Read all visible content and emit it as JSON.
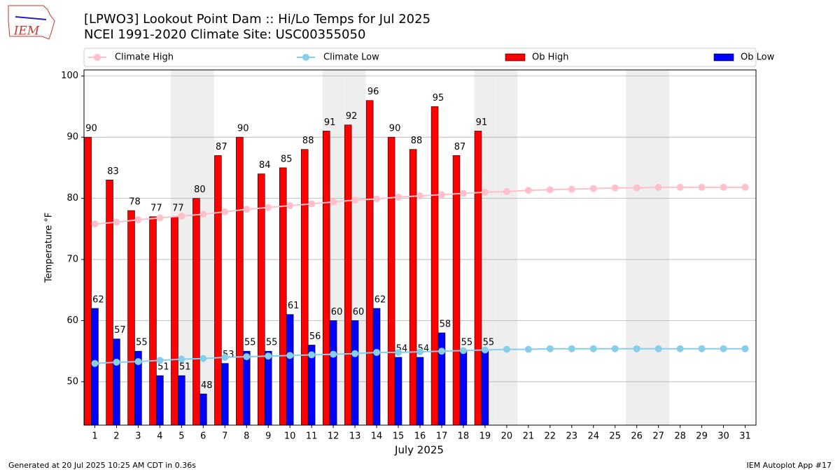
{
  "logo_text": "IEM",
  "footer_left": "Generated at 20 Jul 2025 10:25 AM CDT in 0.36s",
  "footer_right": "IEM Autoplot App #17",
  "chart_data": {
    "type": "bar",
    "title": "[LPWO3] Lookout Point Dam :: Hi/Lo Temps for Jul 2025",
    "subtitle": "NCEI 1991-2020 Climate Site: USC00355050",
    "x_label": "July 2025",
    "y_label": "Temperature °F",
    "x": [
      1,
      2,
      3,
      4,
      5,
      6,
      7,
      8,
      9,
      10,
      11,
      12,
      13,
      14,
      15,
      16,
      17,
      18,
      19,
      20,
      21,
      22,
      23,
      24,
      25,
      26,
      27,
      28,
      29,
      30,
      31
    ],
    "xlim": [
      0.5,
      31.5
    ],
    "xticks": [
      1,
      2,
      3,
      4,
      5,
      6,
      7,
      8,
      9,
      10,
      11,
      12,
      13,
      14,
      15,
      16,
      17,
      18,
      19,
      20,
      21,
      22,
      23,
      24,
      25,
      26,
      27,
      28,
      29,
      30,
      31
    ],
    "ylim": [
      42.9,
      101
    ],
    "yticks": [
      50,
      60,
      70,
      80,
      90,
      100
    ],
    "grid": true,
    "shaded_days": [
      5,
      6,
      12,
      13,
      19,
      20,
      26,
      27
    ],
    "shade_color": "#eeeeee",
    "series": [
      {
        "name": "Climate High",
        "type": "line",
        "color": "#ffc0cb",
        "values": [
          75.8,
          76.1,
          76.5,
          76.8,
          77.1,
          77.4,
          77.8,
          78.2,
          78.5,
          78.8,
          79.1,
          79.4,
          79.7,
          79.9,
          80.2,
          80.4,
          80.6,
          80.8,
          81.0,
          81.1,
          81.3,
          81.4,
          81.5,
          81.6,
          81.7,
          81.7,
          81.8,
          81.8,
          81.8,
          81.8,
          81.8
        ]
      },
      {
        "name": "Climate Low",
        "type": "line",
        "color": "#87ceeb",
        "values": [
          53.0,
          53.2,
          53.3,
          53.5,
          53.7,
          53.8,
          54.0,
          54.1,
          54.2,
          54.3,
          54.4,
          54.5,
          54.6,
          54.8,
          54.8,
          54.9,
          55.0,
          55.1,
          55.2,
          55.3,
          55.3,
          55.4,
          55.4,
          55.4,
          55.4,
          55.4,
          55.4,
          55.4,
          55.4,
          55.4,
          55.4
        ]
      },
      {
        "name": "Ob High",
        "type": "bar",
        "color": "#ff0000",
        "values": [
          90,
          83,
          78,
          77,
          77,
          80,
          87,
          90,
          84,
          85,
          88,
          91,
          92,
          96,
          90,
          88,
          95,
          87,
          91,
          null,
          null,
          null,
          null,
          null,
          null,
          null,
          null,
          null,
          null,
          null,
          null
        ]
      },
      {
        "name": "Ob Low",
        "type": "bar",
        "color": "#0000ff",
        "values": [
          62,
          57,
          55,
          51,
          51,
          48,
          53,
          55,
          55,
          61,
          56,
          60,
          60,
          62,
          54,
          54,
          58,
          55,
          55,
          null,
          null,
          null,
          null,
          null,
          null,
          null,
          null,
          null,
          null,
          null,
          null
        ]
      }
    ]
  }
}
